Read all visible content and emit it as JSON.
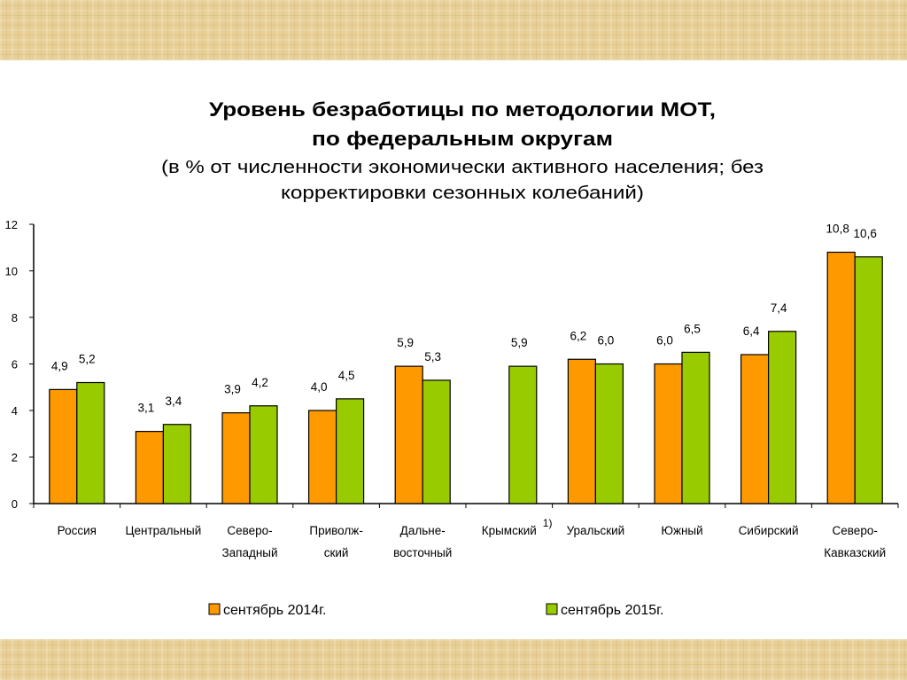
{
  "chart_data": {
    "type": "bar",
    "title": [
      "Уровень безработицы по методологии МОТ,",
      "по федеральным округам"
    ],
    "subtitle": [
      "(в % от численности экономически активного населения; без",
      "корректировки сезонных колебаний)"
    ],
    "categories": [
      [
        "Россия"
      ],
      [
        "Центральный"
      ],
      [
        "Северо-",
        "Западный"
      ],
      [
        "Приволж-",
        "ский"
      ],
      [
        "Дальне-",
        "восточный"
      ],
      [
        "Крымский"
      ],
      [
        "Уральский"
      ],
      [
        "Южный"
      ],
      [
        "Сибирский"
      ],
      [
        "Северо-",
        "Кавказский"
      ]
    ],
    "footnote_marker": "1)",
    "series": [
      {
        "name": "сентябрь 2014г.",
        "color": "#ff9900",
        "values": [
          4.9,
          3.1,
          3.9,
          4.0,
          5.9,
          null,
          6.2,
          6.0,
          6.4,
          10.8
        ],
        "labels": [
          "4,9",
          "3,1",
          "3,9",
          "4,0",
          "5,9",
          null,
          "6,2",
          "6,0",
          "6,4",
          "10,8"
        ]
      },
      {
        "name": "сентябрь 2015г.",
        "color": "#99cc00",
        "values": [
          5.2,
          3.4,
          4.2,
          4.5,
          5.3,
          5.9,
          6.0,
          6.5,
          7.4,
          10.6
        ],
        "labels": [
          "5,2",
          "3,4",
          "4,2",
          "4,5",
          "5,3",
          "5,9",
          "6,0",
          "6,5",
          "7,4",
          "10,6"
        ]
      }
    ],
    "yticks": [
      "0",
      "2",
      "4",
      "6",
      "8",
      "10",
      "12"
    ],
    "ylim": [
      0,
      12
    ],
    "grid": false,
    "legend": "bottom"
  }
}
